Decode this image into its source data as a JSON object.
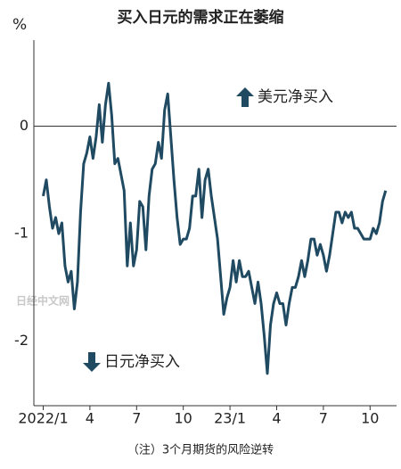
{
  "chart_data": {
    "type": "line",
    "title": "买入日元的需求正在萎缩",
    "y_unit": "%",
    "note": "（注）3个月期货的风险逆转",
    "watermark": "日经中文网",
    "annotations": [
      "美元净买入",
      "日元净买入"
    ],
    "color": "#1f4a62",
    "x": [
      0,
      0.2,
      0.4,
      0.6,
      0.8,
      1,
      1.2,
      1.4,
      1.6,
      1.8,
      2,
      2.2,
      2.4,
      2.6,
      2.8,
      3,
      3.2,
      3.4,
      3.6,
      3.8,
      4,
      4.2,
      4.4,
      4.6,
      4.8,
      5,
      5.2,
      5.4,
      5.6,
      5.8,
      6,
      6.2,
      6.4,
      6.6,
      6.8,
      7,
      7.2,
      7.4,
      7.6,
      7.8,
      8,
      8.2,
      8.4,
      8.6,
      8.8,
      9,
      9.2,
      9.4,
      9.6,
      9.8,
      10,
      10.2,
      10.4,
      10.6,
      10.8,
      11,
      11.2,
      11.4,
      11.6,
      11.8,
      12,
      12.2,
      12.4,
      12.6,
      12.8,
      13,
      13.2,
      13.4,
      13.6,
      13.8,
      14,
      14.2,
      14.4,
      14.6,
      14.8,
      15,
      15.2,
      15.4,
      15.6,
      15.8,
      16,
      16.2,
      16.4,
      16.6,
      16.8,
      17,
      17.2,
      17.4,
      17.6,
      17.8,
      18,
      18.2,
      18.4,
      18.6,
      18.8,
      19,
      19.2,
      19.4,
      19.6,
      19.8,
      20,
      20.2,
      20.4,
      20.6,
      20.8,
      21,
      21.2,
      21.4,
      21.6,
      21.8,
      22
    ],
    "values": [
      -0.65,
      -0.5,
      -0.75,
      -0.95,
      -0.85,
      -1.0,
      -0.9,
      -1.3,
      -1.45,
      -1.35,
      -1.7,
      -1.45,
      -0.8,
      -0.35,
      -0.25,
      -0.1,
      -0.3,
      -0.1,
      0.2,
      -0.15,
      0.2,
      0.4,
      0.1,
      -0.35,
      -0.3,
      -0.45,
      -0.6,
      -1.3,
      -0.9,
      -1.3,
      -1.15,
      -0.7,
      -0.75,
      -1.15,
      -0.65,
      -0.4,
      -0.35,
      -0.15,
      -0.3,
      0.15,
      0.3,
      -0.1,
      -0.5,
      -0.85,
      -1.1,
      -1.05,
      -1.05,
      -0.95,
      -0.65,
      -0.65,
      -0.4,
      -0.85,
      -0.5,
      -0.4,
      -0.65,
      -0.85,
      -1.05,
      -1.4,
      -1.75,
      -1.6,
      -1.5,
      -1.25,
      -1.45,
      -1.25,
      -1.4,
      -1.4,
      -1.35,
      -1.5,
      -1.65,
      -1.45,
      -1.65,
      -1.95,
      -2.3,
      -1.85,
      -1.65,
      -1.55,
      -1.65,
      -1.65,
      -1.85,
      -1.65,
      -1.5,
      -1.5,
      -1.4,
      -1.25,
      -1.4,
      -1.25,
      -1.05,
      -1.05,
      -1.2,
      -1.1,
      -1.2,
      -1.35,
      -1.2,
      -1.0,
      -0.8,
      -0.8,
      -0.9,
      -0.8,
      -0.85,
      -0.8,
      -0.95,
      -0.95,
      -1.0,
      -1.05,
      -1.05,
      -1.05,
      -0.95,
      -1.0,
      -0.9,
      -0.7,
      -0.6
    ],
    "xlim": [
      -0.6,
      22.7
    ],
    "xticks": [
      {
        "value": 0,
        "label": "2022/1"
      },
      {
        "value": 3,
        "label": "4"
      },
      {
        "value": 6,
        "label": "7"
      },
      {
        "value": 9,
        "label": "10"
      },
      {
        "value": 12,
        "label": "23/1"
      },
      {
        "value": 15,
        "label": "4"
      },
      {
        "value": 18,
        "label": "7"
      },
      {
        "value": 21,
        "label": "10"
      }
    ],
    "ylim": [
      -2.6,
      0.8
    ],
    "yticks": [
      0,
      -1,
      -2
    ]
  }
}
